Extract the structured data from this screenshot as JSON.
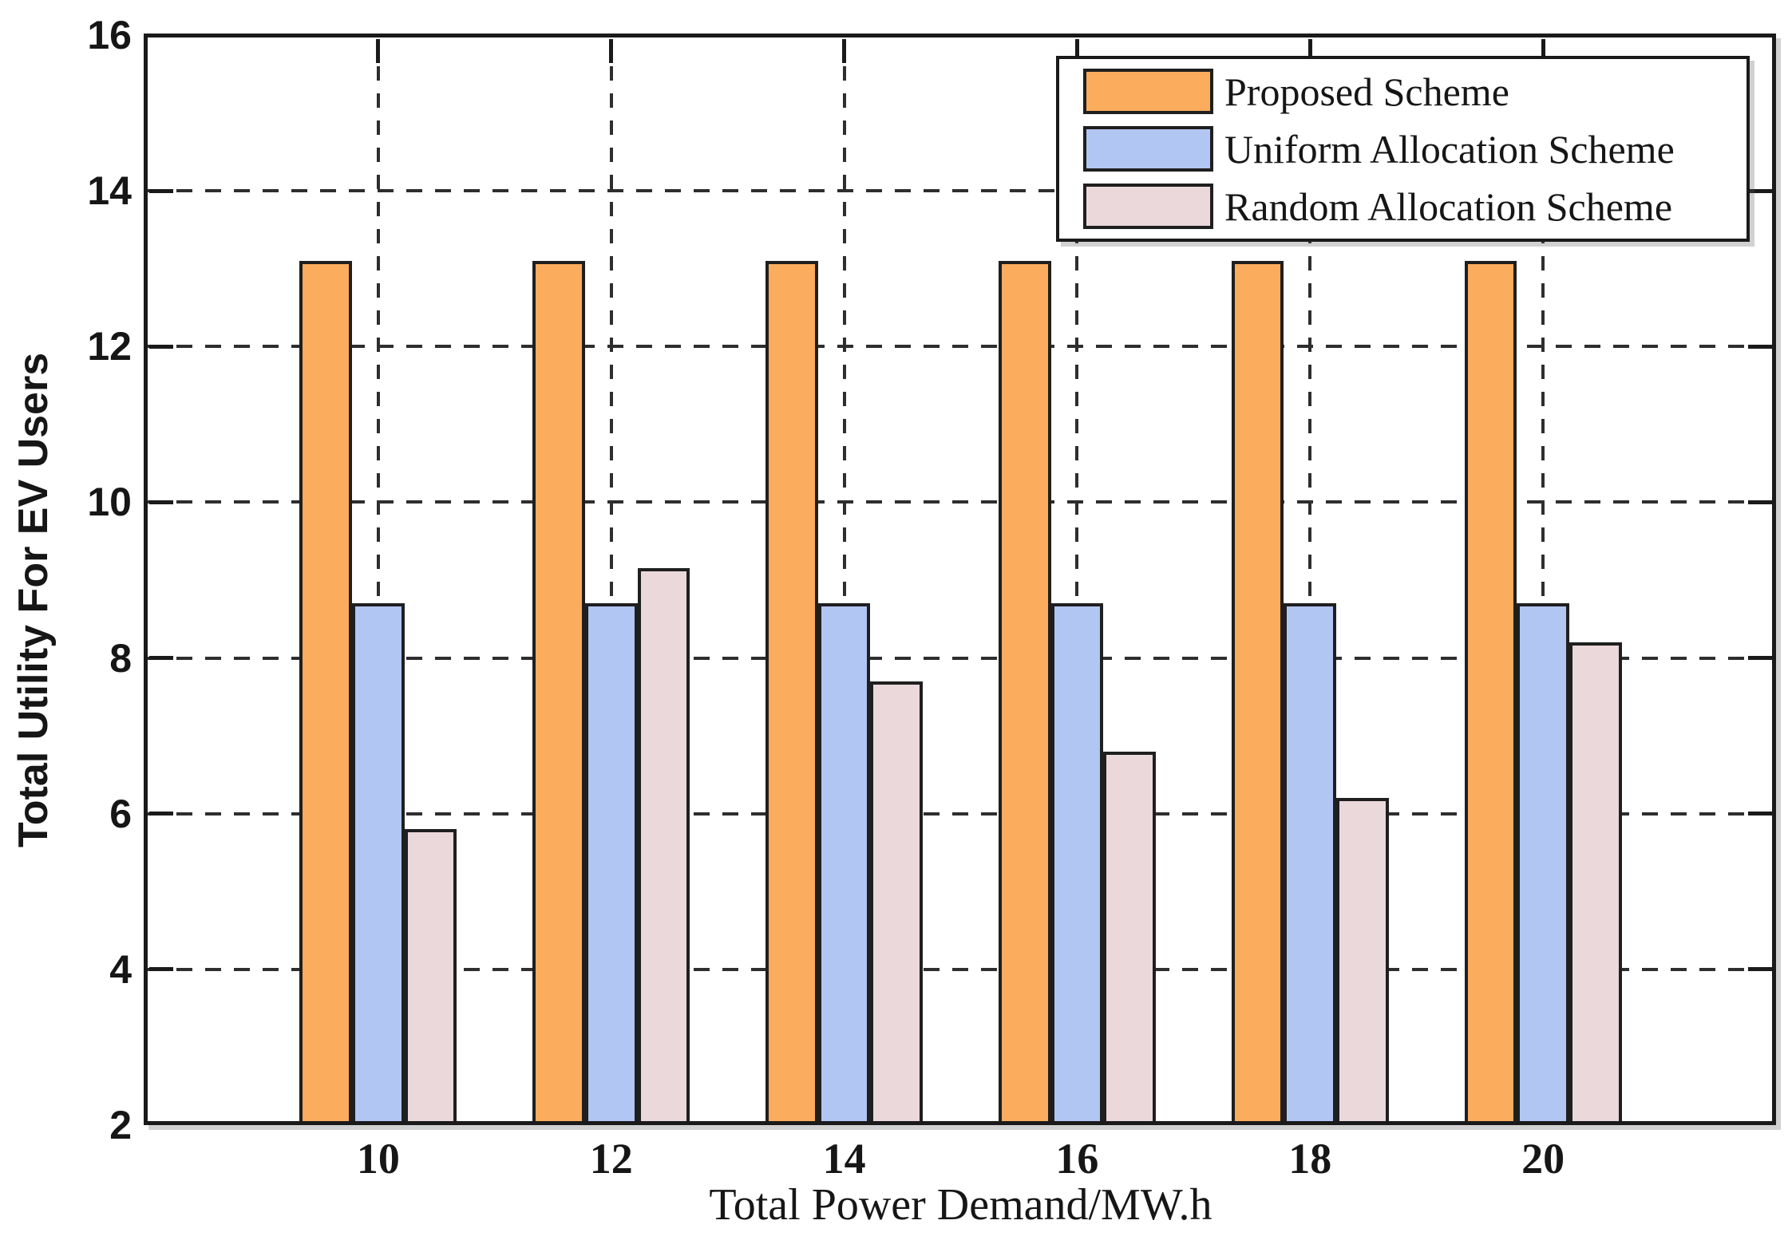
{
  "chart_data": {
    "type": "bar",
    "xlabel": "Total Power Demand/MW.h",
    "ylabel": "Total Utility For EV Users",
    "categories": [
      10,
      12,
      14,
      16,
      18,
      20
    ],
    "series": [
      {
        "name": "Proposed Scheme",
        "color": "#FBAC5C",
        "values": [
          13.1,
          13.1,
          13.1,
          13.1,
          13.1,
          13.1
        ]
      },
      {
        "name": "Uniform Allocation Scheme",
        "color": "#B2C6F3",
        "values": [
          8.7,
          8.7,
          8.7,
          8.7,
          8.7,
          8.7
        ]
      },
      {
        "name": "Random Allocation Scheme",
        "color": "#EAD8DB",
        "values": [
          5.8,
          9.15,
          7.7,
          6.8,
          6.2,
          8.2
        ]
      }
    ],
    "xlim": [
      8,
      22
    ],
    "ylim": [
      2,
      16
    ],
    "yticks": [
      2,
      4,
      6,
      8,
      10,
      12,
      14,
      16
    ],
    "grid": "dashed",
    "grid_color": "#2e2e2e",
    "axis_color": "#1a1a1a",
    "edge_color": "#1f1f1f",
    "legend_position": "top-right",
    "bar_width_data_units": 0.45
  }
}
